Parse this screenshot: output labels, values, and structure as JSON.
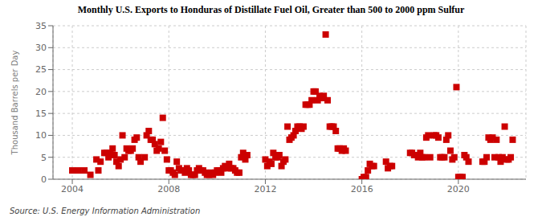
{
  "chart_data": {
    "type": "scatter",
    "title": "Monthly U.S. Exports to Honduras of Distillate Fuel Oil, Greater than 500 to 2000 ppm Sulfur",
    "ylabel": "Thousand Barrels per Day",
    "source": "Source: U.S. Energy Information Administration",
    "color": "#cc0000",
    "marker": "square",
    "grid": true,
    "xlim": [
      2003.2,
      2022.8
    ],
    "xticks": [
      2004,
      2008,
      2012,
      2016,
      2020
    ],
    "ylim": [
      0,
      35
    ],
    "yticks": [
      0,
      5,
      10,
      15,
      20,
      25,
      30,
      35
    ],
    "x": [
      2004.0,
      2004.25,
      2004.5,
      2004.75,
      2005.0,
      2005.08,
      2005.17,
      2005.33,
      2005.42,
      2005.5,
      2005.58,
      2005.67,
      2005.75,
      2005.83,
      2005.92,
      2006.0,
      2006.08,
      2006.17,
      2006.25,
      2006.33,
      2006.42,
      2006.5,
      2006.58,
      2006.67,
      2006.75,
      2006.83,
      2007.0,
      2007.08,
      2007.17,
      2007.25,
      2007.33,
      2007.42,
      2007.5,
      2007.58,
      2007.67,
      2007.75,
      2007.83,
      2007.92,
      2008.0,
      2008.08,
      2008.17,
      2008.25,
      2008.33,
      2008.42,
      2008.5,
      2008.58,
      2008.67,
      2008.75,
      2008.83,
      2008.92,
      2009.0,
      2009.08,
      2009.17,
      2009.25,
      2009.33,
      2009.42,
      2009.5,
      2009.58,
      2009.67,
      2009.75,
      2009.83,
      2009.92,
      2010.0,
      2010.08,
      2010.17,
      2010.25,
      2010.33,
      2010.42,
      2010.5,
      2010.58,
      2010.67,
      2010.75,
      2010.83,
      2010.92,
      2011.0,
      2011.08,
      2011.17,
      2011.25,
      2012.0,
      2012.08,
      2012.17,
      2012.25,
      2012.33,
      2012.42,
      2012.5,
      2012.58,
      2012.67,
      2012.75,
      2012.83,
      2012.92,
      2013.0,
      2013.08,
      2013.17,
      2013.25,
      2013.33,
      2013.42,
      2013.5,
      2013.58,
      2013.67,
      2013.75,
      2013.83,
      2013.92,
      2014.0,
      2014.08,
      2014.17,
      2014.25,
      2014.33,
      2014.42,
      2014.5,
      2014.58,
      2014.67,
      2014.75,
      2014.83,
      2014.92,
      2015.0,
      2015.08,
      2015.17,
      2015.25,
      2015.33,
      2016.0,
      2016.08,
      2016.17,
      2016.25,
      2016.33,
      2016.42,
      2016.5,
      2017.0,
      2017.08,
      2017.17,
      2017.25,
      2018.0,
      2018.08,
      2018.17,
      2018.25,
      2018.33,
      2018.42,
      2018.5,
      2018.58,
      2018.67,
      2018.75,
      2018.83,
      2019.0,
      2019.08,
      2019.17,
      2019.25,
      2019.33,
      2019.42,
      2019.5,
      2019.58,
      2019.67,
      2019.75,
      2019.83,
      2019.92,
      2020.0,
      2020.08,
      2020.17,
      2020.25,
      2020.33,
      2020.42,
      2021.0,
      2021.08,
      2021.17,
      2021.25,
      2021.33,
      2021.42,
      2021.5,
      2021.58,
      2021.67,
      2021.75,
      2021.83,
      2021.92,
      2022.0,
      2022.08,
      2022.17,
      2022.25
    ],
    "values": [
      2.0,
      2.0,
      2.0,
      1.0,
      4.5,
      2.0,
      4.0,
      6.0,
      6.0,
      5.0,
      6.0,
      7.0,
      5.5,
      4.0,
      3.0,
      4.5,
      10.0,
      5.0,
      7.0,
      6.5,
      6.5,
      7.0,
      9.0,
      9.5,
      5.0,
      4.0,
      5.0,
      10.0,
      11.0,
      9.0,
      9.0,
      8.0,
      6.5,
      7.0,
      8.5,
      14.0,
      6.5,
      4.5,
      2.0,
      2.0,
      1.5,
      1.0,
      4.0,
      2.5,
      2.0,
      2.0,
      1.5,
      2.5,
      2.0,
      1.0,
      1.0,
      1.0,
      2.0,
      2.5,
      2.0,
      2.0,
      1.5,
      1.0,
      1.0,
      1.5,
      1.0,
      1.5,
      2.0,
      2.0,
      1.5,
      2.5,
      3.0,
      2.5,
      3.5,
      2.5,
      2.5,
      2.0,
      1.5,
      1.5,
      5.0,
      6.0,
      4.5,
      5.5,
      4.5,
      3.0,
      4.0,
      3.5,
      6.0,
      5.0,
      5.0,
      5.5,
      3.0,
      4.0,
      4.5,
      12.0,
      9.0,
      9.5,
      10.0,
      11.0,
      12.0,
      12.0,
      11.5,
      12.0,
      17.0,
      17.0,
      17.0,
      18.0,
      20.0,
      20.0,
      18.0,
      19.0,
      18.5,
      19.0,
      33.0,
      18.0,
      12.0,
      12.0,
      12.0,
      11.0,
      7.0,
      7.0,
      6.5,
      7.0,
      6.5,
      0.0,
      0.5,
      0.5,
      2.0,
      3.5,
      3.0,
      3.0,
      4.0,
      2.5,
      3.0,
      3.0,
      6.0,
      6.0,
      5.5,
      5.5,
      5.0,
      6.0,
      5.0,
      5.0,
      9.5,
      10.0,
      5.0,
      10.0,
      10.0,
      9.5,
      5.0,
      5.0,
      5.0,
      9.0,
      10.0,
      6.5,
      4.5,
      5.0,
      21.0,
      0.5,
      0.5,
      0.5,
      5.5,
      5.0,
      4.0,
      4.0,
      4.0,
      5.0,
      9.5,
      9.0,
      9.5,
      5.0,
      9.0,
      5.0,
      4.0,
      5.0,
      12.0,
      4.5,
      4.5,
      5.0,
      9.0
    ]
  }
}
